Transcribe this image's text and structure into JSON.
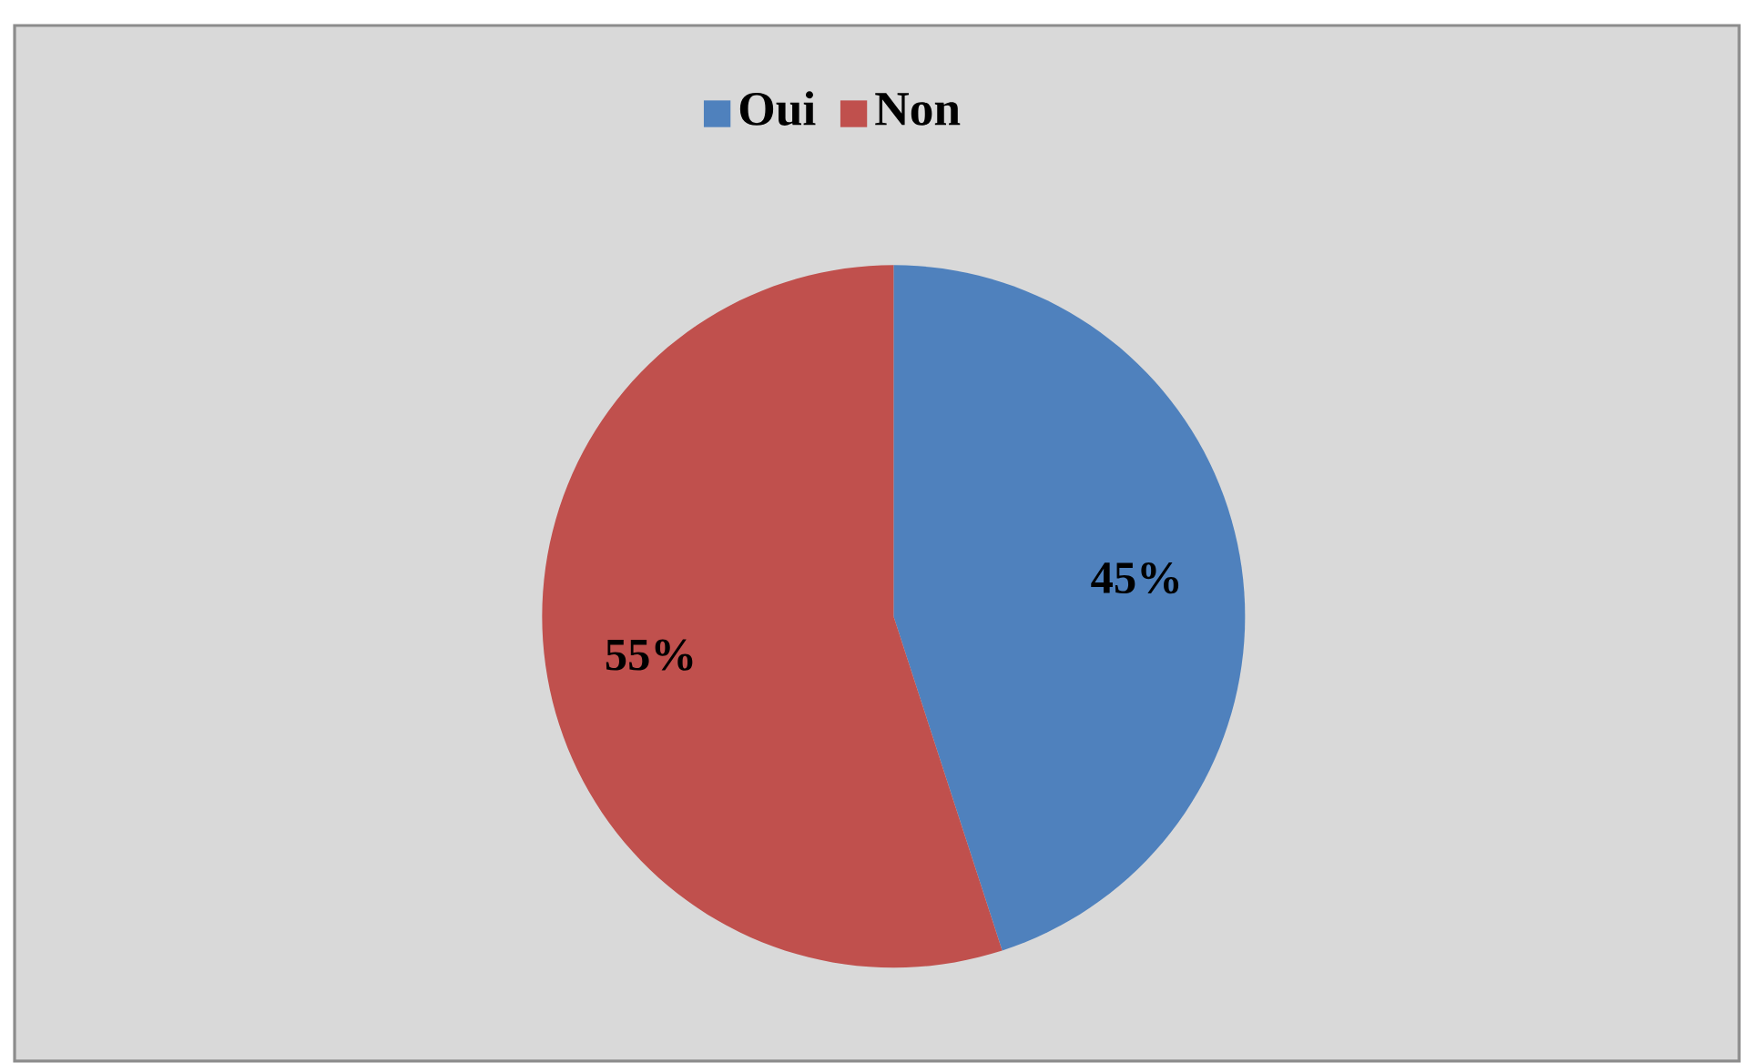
{
  "chart_data": {
    "type": "pie",
    "categories": [
      "Oui",
      "Non"
    ],
    "values": [
      45,
      55
    ],
    "colors": [
      "#4f81bd",
      "#c0504d"
    ],
    "value_labels": [
      "45%",
      "55%"
    ],
    "legend": "top"
  }
}
